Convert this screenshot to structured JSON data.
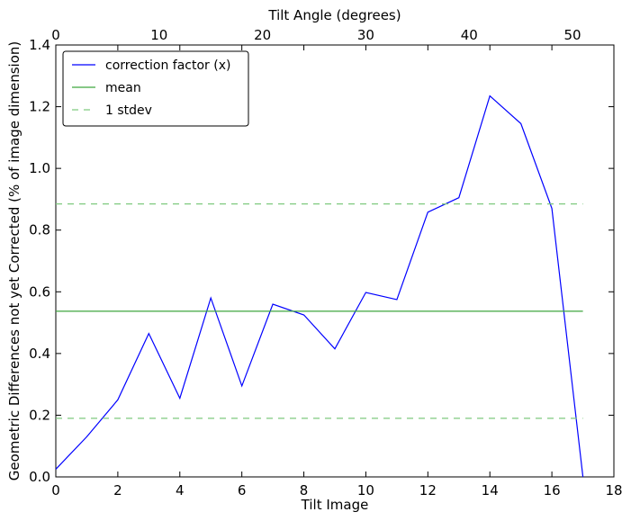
{
  "chart_data": {
    "type": "line",
    "xlabel": "Tilt Image",
    "ylabel": "Geometric Differences not yet Corrected (% of image dimension)",
    "x2label": "Tilt Angle (degrees)",
    "xlim": [
      0,
      18
    ],
    "ylim": [
      0,
      1.4
    ],
    "x2lim": [
      0,
      54
    ],
    "xticks": [
      "0",
      "2",
      "4",
      "6",
      "8",
      "10",
      "12",
      "14",
      "16",
      "18"
    ],
    "yticks": [
      "0.0",
      "0.2",
      "0.4",
      "0.6",
      "0.8",
      "1.0",
      "1.2",
      "1.4"
    ],
    "x2ticks": [
      "0",
      "10",
      "20",
      "30",
      "40",
      "50"
    ],
    "legend_position": "top-left",
    "series": [
      {
        "name": "correction factor (x)",
        "color": "#0000ff",
        "style": "solid",
        "x": [
          0,
          1,
          2,
          3,
          4,
          5,
          6,
          7,
          8,
          9,
          10,
          11,
          12,
          13,
          14,
          15,
          16,
          17
        ],
        "y": [
          0.025,
          0.13,
          0.25,
          0.465,
          0.255,
          0.58,
          0.295,
          0.56,
          0.525,
          0.415,
          0.598,
          0.575,
          0.858,
          0.905,
          1.235,
          1.145,
          0.87,
          0.0
        ]
      },
      {
        "name": "mean",
        "color": "#3fa63f",
        "style": "solid",
        "x": [
          0,
          17
        ],
        "y": [
          0.537,
          0.537
        ]
      },
      {
        "name": "1 stdev",
        "color": "#7fc97f",
        "style": "dashed",
        "x": [
          0,
          17
        ],
        "y": [
          0.885,
          0.885
        ]
      },
      {
        "name": "",
        "color": "#7fc97f",
        "style": "dashed",
        "x": [
          0,
          17
        ],
        "y": [
          0.19,
          0.19
        ]
      }
    ]
  }
}
